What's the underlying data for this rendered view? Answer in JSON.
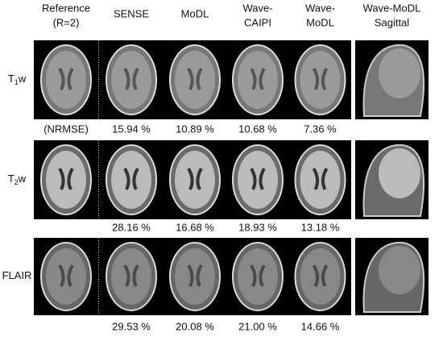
{
  "header": {
    "columns": [
      [
        "Reference",
        "(R=2)"
      ],
      [
        "SENSE"
      ],
      [
        "MoDL"
      ],
      [
        "Wave-",
        "CAIPI"
      ],
      [
        "Wave-",
        "MoDL"
      ],
      [
        "Wave-MoDL",
        "Sagittal"
      ]
    ]
  },
  "rows": [
    {
      "label": {
        "text": "T",
        "sub": "1",
        "tail": "w"
      },
      "nrmse_label": "(NRMSE)",
      "errors": [
        "15.94 %",
        "10.89 %",
        "10.68 %",
        "7.36 %"
      ]
    },
    {
      "label": {
        "text": "T",
        "sub": "2",
        "tail": "w"
      },
      "errors": [
        "28.16 %",
        "16.68 %",
        "18.93 %",
        "13.18 %"
      ]
    },
    {
      "label": {
        "text": "FLAIR"
      },
      "errors": [
        "29.53 %",
        "20.08 %",
        "21.00 %",
        "14.66 %"
      ]
    }
  ]
}
